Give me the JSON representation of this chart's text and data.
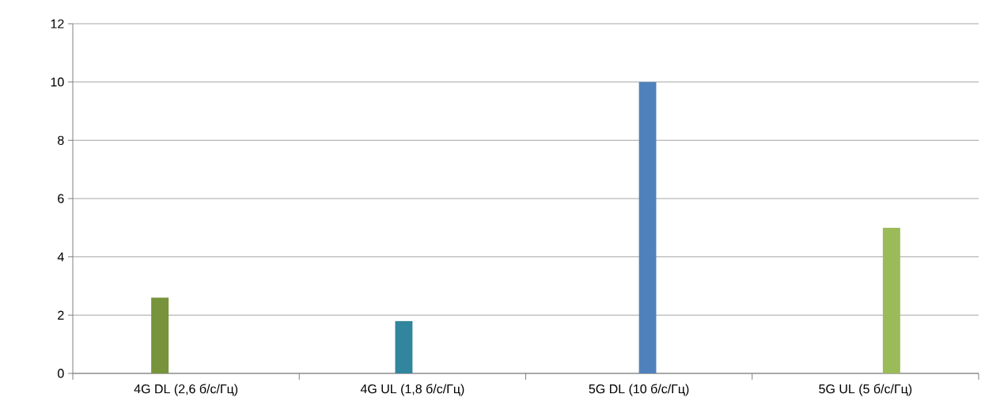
{
  "chart_data": {
    "type": "bar",
    "categories": [
      "4G DL (2,6 б/с/Гц)",
      "4G UL (1,8 б/с/Гц)",
      "5G DL (10 б/с/Гц)",
      "5G UL (5 б/с/Гц)"
    ],
    "series": [
      {
        "color": "#77933c",
        "values": [
          2.6,
          null,
          null,
          null
        ]
      },
      {
        "color": "#31859c",
        "values": [
          null,
          1.8,
          null,
          null
        ]
      },
      {
        "color": "#4f81bd",
        "values": [
          null,
          null,
          10,
          null
        ]
      },
      {
        "color": "#9bbb59",
        "values": [
          null,
          null,
          null,
          5
        ]
      }
    ],
    "ylim": [
      0,
      12
    ],
    "yticks": [
      0,
      2,
      4,
      6,
      8,
      10,
      12
    ],
    "grid": "y"
  }
}
